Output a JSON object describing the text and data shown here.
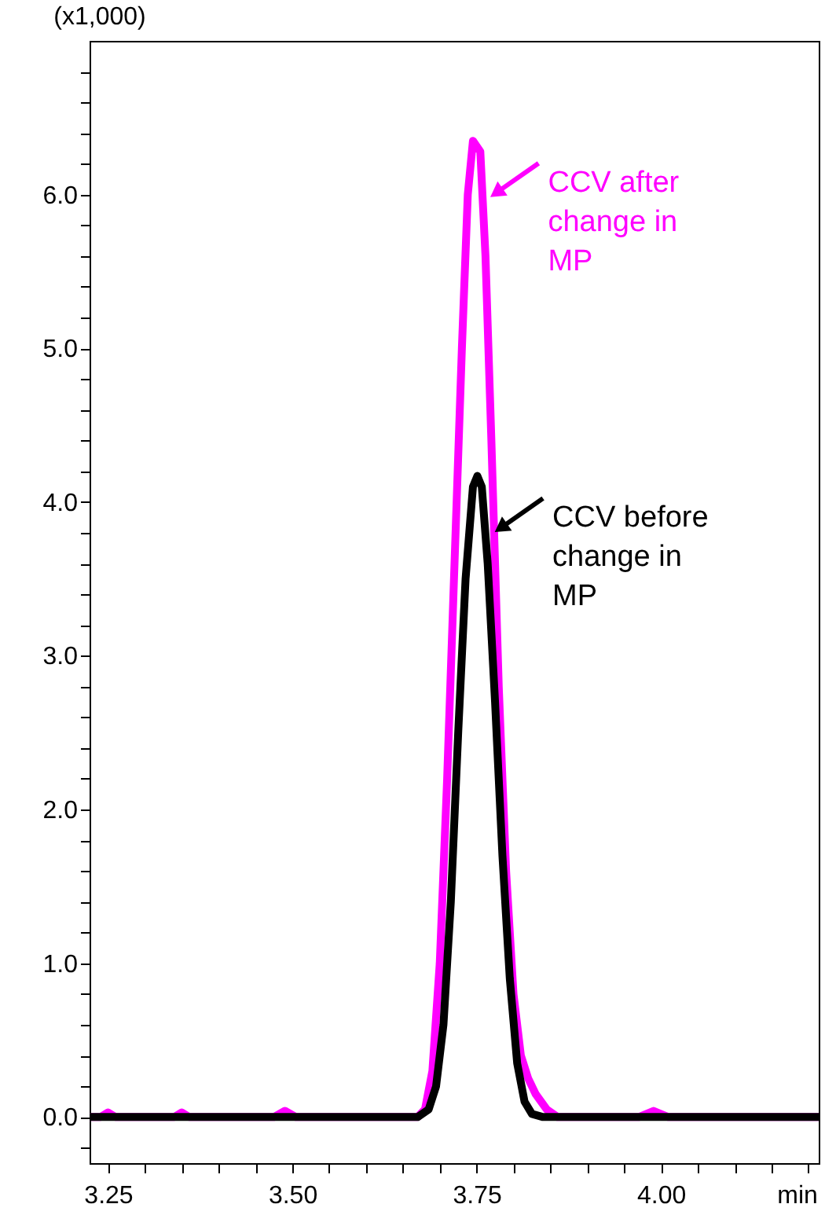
{
  "chart_data": {
    "type": "line",
    "ylabel": "(x1,000)",
    "xlabel": "min",
    "xlim": [
      3.225,
      4.214
    ],
    "ylim": [
      -0.3,
      7.0
    ],
    "grid": false,
    "legend": "right",
    "xticks": [
      3.25,
      {
        "value": 3.3,
        "label": null
      },
      {
        "value": 3.35,
        "label": null
      },
      {
        "value": 3.4,
        "label": null
      },
      {
        "value": 3.45,
        "label": null
      },
      {
        "value": 3.5,
        "label": "3.50"
      },
      {
        "value": 3.55,
        "label": null
      },
      {
        "value": 3.6,
        "label": null
      },
      {
        "value": 3.65,
        "label": null
      },
      {
        "value": 3.7,
        "label": null
      },
      3.75,
      {
        "value": 3.8,
        "label": null
      },
      {
        "value": 3.85,
        "label": null
      },
      {
        "value": 3.9,
        "label": null
      },
      {
        "value": 3.95,
        "label": null
      },
      {
        "value": 4.0,
        "label": "4.00"
      },
      {
        "value": 4.05,
        "label": null
      },
      {
        "value": 4.1,
        "label": null
      },
      {
        "value": 4.15,
        "label": null
      },
      {
        "value": 4.2,
        "label": null
      }
    ],
    "yticks": [
      {
        "value": -0.2,
        "label": null
      },
      {
        "value": 0,
        "label": "0.0"
      },
      {
        "value": 0.2,
        "label": null
      },
      {
        "value": 0.4,
        "label": null
      },
      {
        "value": 0.6,
        "label": null
      },
      {
        "value": 0.8,
        "label": null
      },
      {
        "value": 1,
        "label": "1.0"
      },
      {
        "value": 1.2,
        "label": null
      },
      {
        "value": 1.4,
        "label": null
      },
      {
        "value": 1.6,
        "label": null
      },
      {
        "value": 1.8,
        "label": null
      },
      {
        "value": 2,
        "label": "2.0"
      },
      {
        "value": 2.2,
        "label": null
      },
      {
        "value": 2.4,
        "label": null
      },
      {
        "value": 2.6,
        "label": null
      },
      {
        "value": 2.8,
        "label": null
      },
      {
        "value": 3,
        "label": "3.0"
      },
      {
        "value": 3.2,
        "label": null
      },
      {
        "value": 3.4,
        "label": null
      },
      {
        "value": 3.6,
        "label": null
      },
      {
        "value": 3.8,
        "label": null
      },
      {
        "value": 4,
        "label": "4.0"
      },
      {
        "value": 4.2,
        "label": null
      },
      {
        "value": 4.4,
        "label": null
      },
      {
        "value": 4.6,
        "label": null
      },
      {
        "value": 4.8,
        "label": null
      },
      {
        "value": 5,
        "label": "5.0"
      },
      {
        "value": 5.2,
        "label": null
      },
      {
        "value": 5.4,
        "label": null
      },
      {
        "value": 5.6,
        "label": null
      },
      {
        "value": 5.8,
        "label": null
      },
      {
        "value": 6,
        "label": "6.0"
      },
      {
        "value": 6.2,
        "label": null
      },
      {
        "value": 6.4,
        "label": null
      },
      {
        "value": 6.6,
        "label": null
      },
      {
        "value": 6.8,
        "label": null
      }
    ],
    "series": [
      {
        "name": "CCV after change in MP",
        "color": "#ff00ff",
        "x": [
          3.225,
          3.24,
          3.25,
          3.26,
          3.34,
          3.35,
          3.36,
          3.475,
          3.49,
          3.505,
          3.67,
          3.68,
          3.69,
          3.7,
          3.71,
          3.72,
          3.73,
          3.738,
          3.745,
          3.755,
          3.762,
          3.77,
          3.78,
          3.79,
          3.8,
          3.81,
          3.82,
          3.83,
          3.845,
          3.86,
          3.97,
          3.99,
          4.01,
          4.214
        ],
        "values": [
          0,
          0,
          0.03,
          0,
          0,
          0.03,
          0,
          0,
          0.04,
          0,
          0,
          0.05,
          0.3,
          1.0,
          2.2,
          3.6,
          5.0,
          6.0,
          6.35,
          6.28,
          5.6,
          4.4,
          2.8,
          1.6,
          0.8,
          0.4,
          0.25,
          0.15,
          0.05,
          0,
          0,
          0.04,
          0,
          0
        ]
      },
      {
        "name": "CCV before change in MP",
        "color": "#000000",
        "x": [
          3.225,
          3.67,
          3.685,
          3.695,
          3.705,
          3.715,
          3.725,
          3.735,
          3.745,
          3.751,
          3.757,
          3.765,
          3.775,
          3.785,
          3.795,
          3.805,
          3.815,
          3.825,
          3.84,
          4.214
        ],
        "values": [
          0,
          0,
          0.05,
          0.2,
          0.6,
          1.4,
          2.5,
          3.5,
          4.1,
          4.17,
          4.1,
          3.6,
          2.7,
          1.7,
          0.9,
          0.35,
          0.1,
          0.02,
          0,
          0
        ]
      }
    ]
  }
}
